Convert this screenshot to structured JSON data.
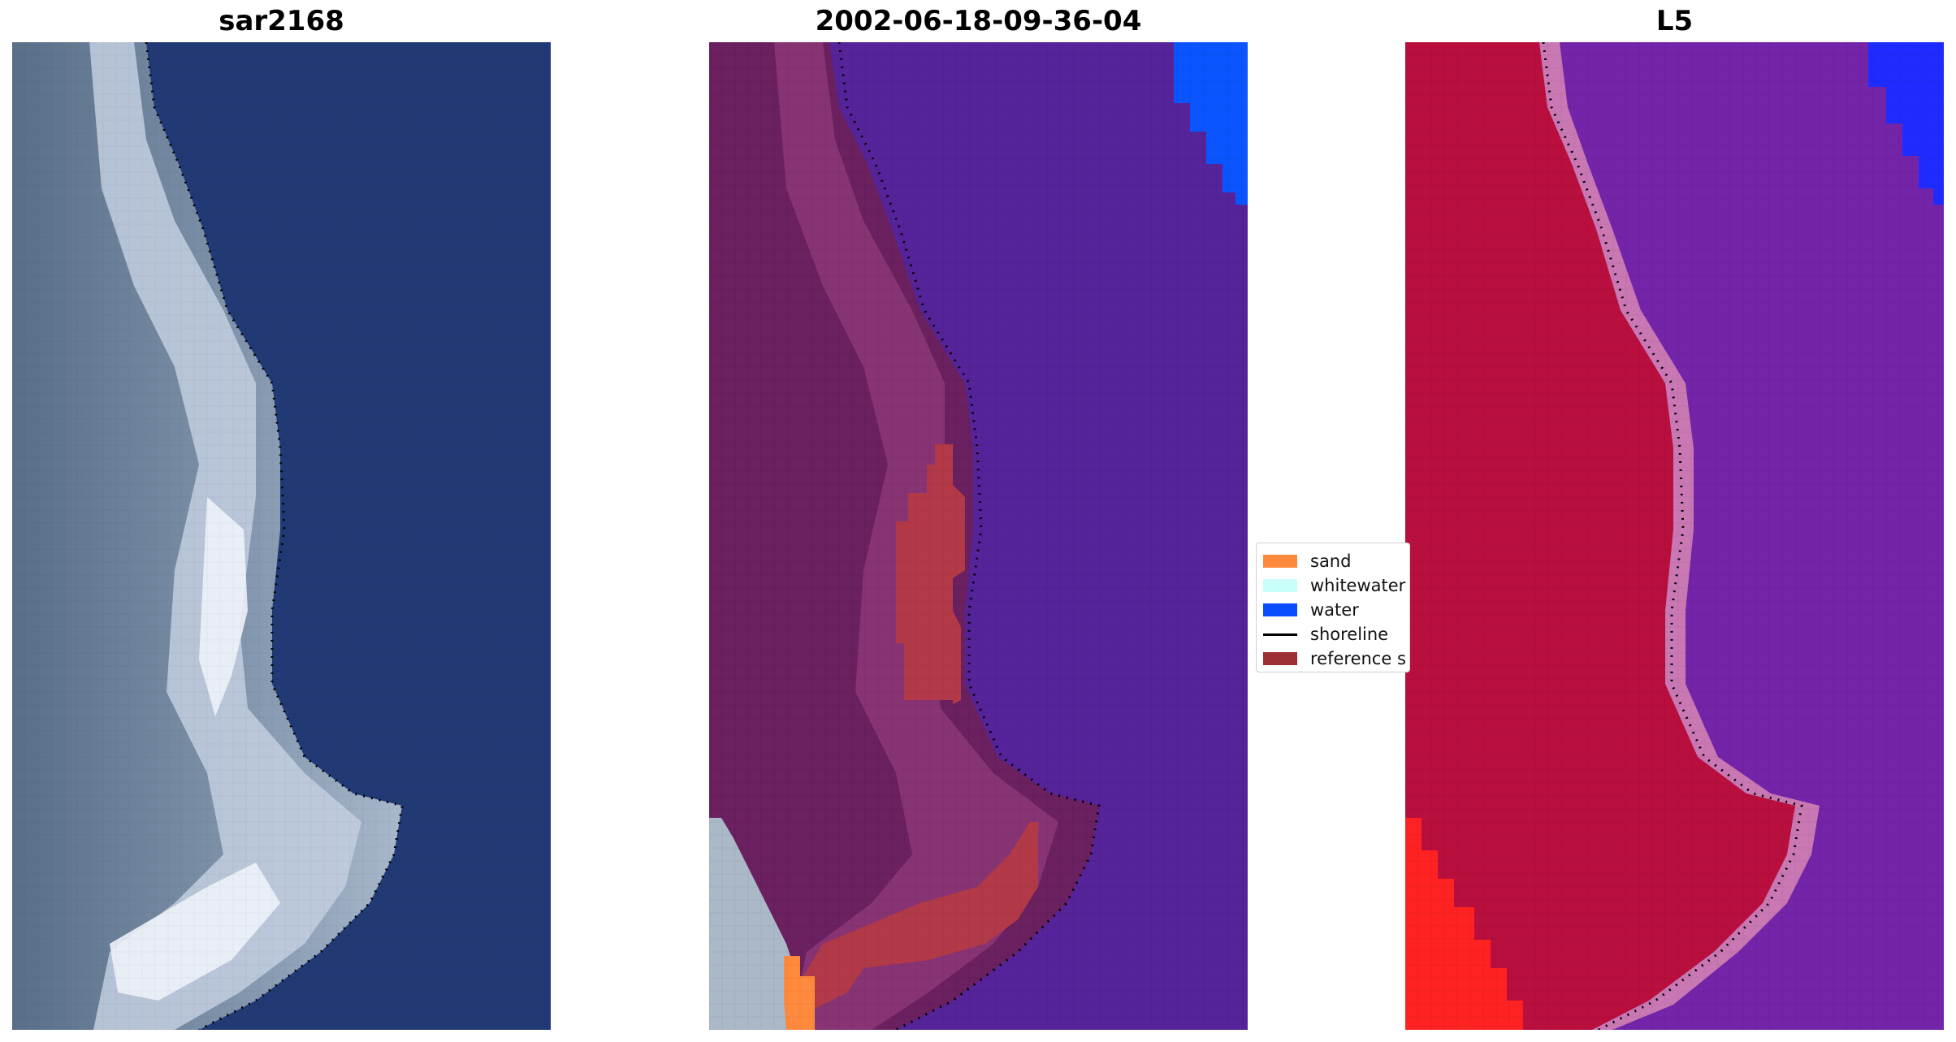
{
  "figure": {
    "panels": [
      {
        "title": "sar2168"
      },
      {
        "title": "2002-06-18-09-36-04"
      },
      {
        "title": "L5"
      }
    ],
    "legend": {
      "items": [
        {
          "label": "sand",
          "color": "#ff8a3d",
          "kind": "patch"
        },
        {
          "label": "whitewater",
          "color": "#c9fffb",
          "kind": "patch"
        },
        {
          "label": "water",
          "color": "#0a4dff",
          "kind": "patch"
        },
        {
          "label": "shoreline",
          "color": "#000000",
          "kind": "line"
        },
        {
          "label": "reference s",
          "color": "#9c2f34",
          "kind": "patch"
        }
      ]
    },
    "colors": {
      "rgb_water": "#213a75",
      "rgb_land": "#6f8499",
      "rgb_white": "#dde4ef",
      "class_water": "#55249a",
      "class_land": "#6b2060",
      "class_land_light": "#8c3576",
      "class_reference": "#b23a48",
      "class_blue": "#0a55ff",
      "class_sand": "#ff8a3d",
      "class_gray": "#aab8c7",
      "index_land": "#b80f3e",
      "index_water": "#7424a8",
      "index_band": "#c978b4",
      "index_red": "#ff2222",
      "index_blue": "#1f2cff",
      "shoreline": "#000000"
    }
  }
}
